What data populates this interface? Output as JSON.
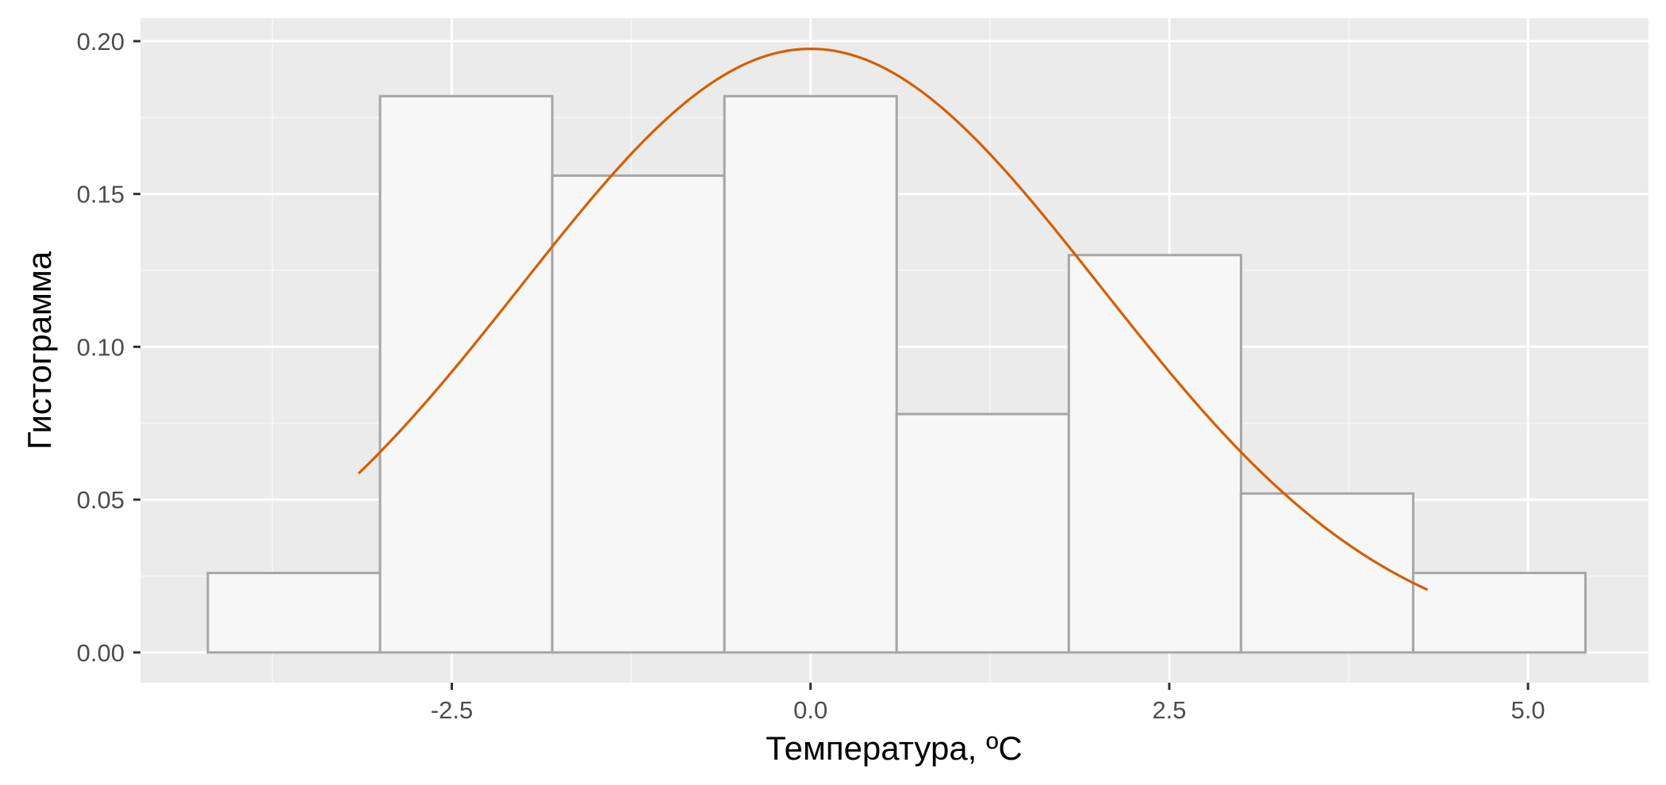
{
  "chart_data": {
    "type": "histogram",
    "xlabel": "Температура, ºC",
    "ylabel": "Гистограмма",
    "xlim": [
      -4.67,
      5.84
    ],
    "ylim": [
      -0.0099,
      0.2075
    ],
    "x_ticks": [
      -2.5,
      0.0,
      2.5,
      5.0
    ],
    "x_tick_labels": [
      "-2.5",
      "0.0",
      "2.5",
      "5.0"
    ],
    "y_ticks": [
      0.0,
      0.05,
      0.1,
      0.15,
      0.2
    ],
    "y_tick_labels": [
      "0.00",
      "0.05",
      "0.10",
      "0.15",
      "0.20"
    ],
    "bins": [
      {
        "x0": -4.2,
        "x1": -3.0,
        "density": 0.026
      },
      {
        "x0": -3.0,
        "x1": -1.8,
        "density": 0.182
      },
      {
        "x0": -1.8,
        "x1": -0.6,
        "density": 0.156
      },
      {
        "x0": -0.6,
        "x1": 0.6,
        "density": 0.182
      },
      {
        "x0": 0.6,
        "x1": 1.8,
        "density": 0.078
      },
      {
        "x0": 1.8,
        "x1": 3.0,
        "density": 0.13
      },
      {
        "x0": 3.0,
        "x1": 4.2,
        "density": 0.052
      },
      {
        "x0": 4.2,
        "x1": 5.4,
        "density": 0.026
      }
    ],
    "density_curve": {
      "type": "normal",
      "mean": 0.0,
      "sd": 2.02,
      "x_range": [
        -3.15,
        4.3
      ]
    },
    "grid": true,
    "colors": {
      "panel_background": "#ebebeb",
      "grid_major": "#ffffff",
      "grid_minor": "#f5f5f5",
      "bar_fill": "#f7f7f7",
      "bar_stroke": "#a6a6a6",
      "curve": "#d55e00"
    }
  }
}
